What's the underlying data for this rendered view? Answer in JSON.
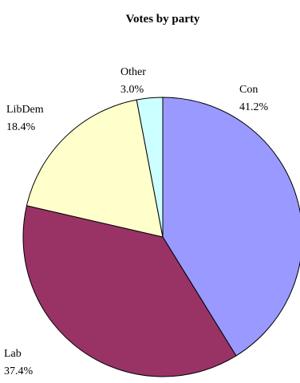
{
  "chart_data": {
    "type": "pie",
    "title": "Votes by party",
    "slices": [
      {
        "label": "Con",
        "percent_label": "41.2%",
        "value": 41.2,
        "color": "#9999ff"
      },
      {
        "label": "Lab",
        "percent_label": "37.4%",
        "value": 37.4,
        "color": "#993366"
      },
      {
        "label": "LibDem",
        "percent_label": "18.4%",
        "value": 18.4,
        "color": "#ffffcc"
      },
      {
        "label": "Other",
        "percent_label": "3.0%",
        "value": 3.0,
        "color": "#ccffff"
      }
    ],
    "start": "12 o'clock",
    "direction": "clockwise",
    "edge_color": "#000000",
    "legend": "none"
  }
}
